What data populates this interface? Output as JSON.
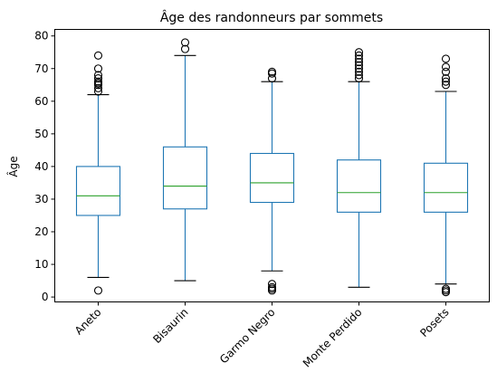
{
  "chart_data": {
    "type": "box",
    "title": "Âge des randonneurs par sommets",
    "xlabel": "",
    "ylabel": "Âge",
    "ylim": [
      -1.5,
      82
    ],
    "yticks": [
      0,
      10,
      20,
      30,
      40,
      50,
      60,
      70,
      80
    ],
    "grid": false,
    "colors": {
      "box": "#1f77b4",
      "median": "#2ca02c",
      "cap": "#000000",
      "flier": "#000000"
    },
    "categories": [
      "Aneto",
      "Bisaurin",
      "Garmo Negro",
      "Monte Perdido",
      "Posets"
    ],
    "boxes": [
      {
        "name": "Aneto",
        "whislo": 6,
        "q1": 25,
        "med": 31,
        "q3": 40,
        "whishi": 62,
        "fliers": [
          2,
          63,
          64,
          65,
          65.5,
          66,
          67,
          68,
          70,
          74
        ]
      },
      {
        "name": "Bisaurin",
        "whislo": 5,
        "q1": 27,
        "med": 34,
        "q3": 46,
        "whishi": 74,
        "fliers": [
          76,
          78
        ]
      },
      {
        "name": "Garmo Negro",
        "whislo": 8,
        "q1": 29,
        "med": 35,
        "q3": 44,
        "whishi": 66,
        "fliers": [
          2,
          2.5,
          3,
          4,
          67,
          68.5,
          69
        ]
      },
      {
        "name": "Monte Perdido",
        "whislo": 3,
        "q1": 26,
        "med": 32,
        "q3": 42,
        "whishi": 66,
        "fliers": [
          67,
          68,
          69,
          70,
          71,
          72,
          73,
          74,
          75
        ]
      },
      {
        "name": "Posets",
        "whislo": 4,
        "q1": 26,
        "med": 32,
        "q3": 41,
        "whishi": 63,
        "fliers": [
          1.5,
          2,
          2.5,
          65,
          66,
          67,
          69,
          70.5,
          73
        ]
      }
    ]
  }
}
